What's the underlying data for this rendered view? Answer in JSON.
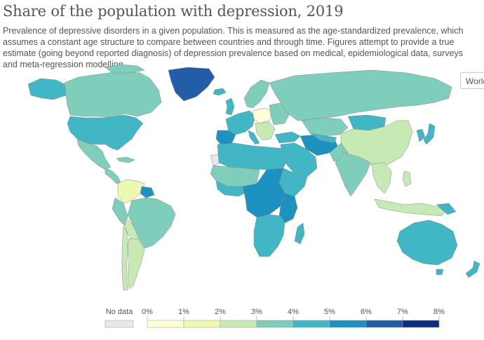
{
  "header": {
    "title": "Share of the population with depression, 2019",
    "subtitle": "Prevalence of depressive disorders in a given population. This is measured as the age-standardized prevalence, which assumes a constant age structure to compare between countries and through time. Figures attempt to provide a true estimate (going beyond reported diagnosis) of depression prevalence based on medical, epidemiological data, surveys and meta-regression modelling."
  },
  "controls": {
    "region_button": "World"
  },
  "legend": {
    "no_data_label": "No data",
    "no_data_color": "#e8e8e8",
    "ticks": [
      "0%",
      "1%",
      "2%",
      "3%",
      "4%",
      "5%",
      "6%",
      "7%",
      "8%"
    ],
    "colors": [
      "#ffffd9",
      "#edf8b1",
      "#c7e9b4",
      "#7fcdbb",
      "#41b6c4",
      "#1d91c0",
      "#225ea8",
      "#0c2c84"
    ]
  },
  "ocean_color": "#ffffff",
  "border_color": "#8a8a8a"
}
